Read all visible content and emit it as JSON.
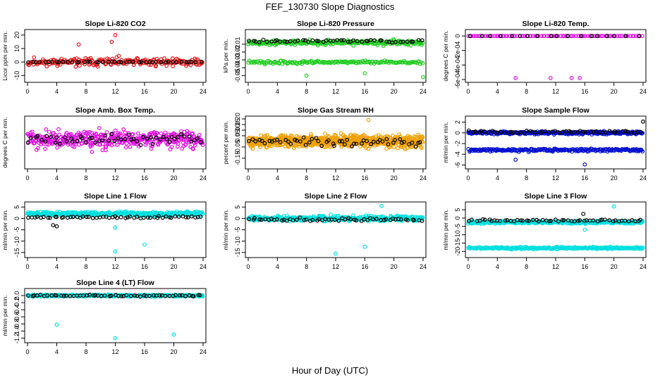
{
  "page": {
    "title": "FEF_130730  Slope Diagnostics",
    "xlabel": "Hour of Day (UTC)"
  },
  "chart_data": [
    {
      "id": "co2",
      "type": "scatter",
      "title": "Slope Li-820 CO2",
      "ylabel": "Licor ppm per min.",
      "xlim": [
        0,
        24
      ],
      "ylim": [
        -13,
        22
      ],
      "yticks": [
        -10,
        0,
        10,
        20
      ],
      "ytick_labels": [
        "-10",
        "0",
        "10",
        "20"
      ],
      "series": [
        {
          "name": "all",
          "color": "#e31a1c",
          "center": 0,
          "spread": 6,
          "n": 220,
          "seed": 11,
          "outliers": [
            [
              12,
              20
            ],
            [
              11.5,
              15
            ],
            [
              7,
              13
            ]
          ]
        },
        {
          "name": "flagged",
          "color": "#000000",
          "center": 0,
          "spread": 0.5,
          "n": 45,
          "seed": 12,
          "outliers": []
        }
      ]
    },
    {
      "id": "pressure",
      "type": "scatter",
      "title": "Slope Li-820 Pressure",
      "ylabel": "kPa per min.",
      "xlim": [
        0,
        24
      ],
      "ylim": [
        -0.055,
        0.005
      ],
      "yticks": [
        -0.05,
        -0.04,
        -0.03,
        -0.02,
        -0.01
      ],
      "ytick_labels": [
        "-0.05",
        "-0.04",
        "-0.03",
        "-0.02",
        "-0.01"
      ],
      "series": [
        {
          "name": "all-upper",
          "color": "#22cc22",
          "center": -0.008,
          "spread": 0.006,
          "n": 260,
          "seed": 21,
          "outliers": [
            [
              8,
              -0.05
            ],
            [
              24,
              -0.052
            ],
            [
              16,
              -0.047
            ]
          ]
        },
        {
          "name": "all-lower",
          "color": "#22cc22",
          "center": -0.033,
          "spread": 0.004,
          "n": 160,
          "seed": 22,
          "outliers": []
        },
        {
          "name": "flagged",
          "color": "#000000",
          "center": -0.006,
          "spread": 0.004,
          "n": 50,
          "seed": 23,
          "outliers": []
        }
      ]
    },
    {
      "id": "temp",
      "type": "scatter",
      "title": "Slope Li-820 Temp.",
      "ylabel": "degrees C per min.",
      "xlim": [
        0,
        24
      ],
      "ylim": [
        -0.0006,
        5e-05
      ],
      "yticks": [
        -0.0006,
        -0.0004,
        -0.0002,
        0
      ],
      "ytick_labels": [
        "-6e-04",
        "-4e-04",
        "-2e-04",
        "0"
      ],
      "series": [
        {
          "name": "all",
          "color": "#e010e0",
          "center": 0,
          "spread": 0,
          "n": 90,
          "seed": 31,
          "outliers": [
            [
              6.5,
              -0.00058
            ],
            [
              11.3,
              -0.00058
            ],
            [
              14.2,
              -0.00058
            ],
            [
              15.3,
              -0.00058
            ]
          ]
        },
        {
          "name": "flagged",
          "color": "#000000",
          "center": 0,
          "spread": 0,
          "n": 18,
          "seed": 32,
          "outliers": []
        }
      ]
    },
    {
      "id": "ambtemp",
      "type": "scatter",
      "title": "Slope Amb. Box Temp.",
      "ylabel": "degrees C per min.",
      "xlim": [
        0,
        24
      ],
      "ylim": [
        -0.18,
        0.14
      ],
      "yticks": [],
      "ytick_labels": [],
      "series": [
        {
          "name": "all",
          "color": "#e010e0",
          "center": 0,
          "spread": 0.11,
          "n": 420,
          "seed": 41,
          "outliers": []
        },
        {
          "name": "flagged",
          "color": "#000000",
          "center": 0,
          "spread": 0.06,
          "n": 55,
          "seed": 42,
          "outliers": []
        }
      ]
    },
    {
      "id": "rh",
      "type": "scatter",
      "title": "Slope Gas Stream RH",
      "ylabel": "percent per min.",
      "xlim": [
        0,
        24
      ],
      "ylim": [
        -0.22,
        0.2
      ],
      "yticks": [
        -0.15,
        -0.05,
        0.05,
        0.1,
        0.15,
        0.2
      ],
      "ytick_labels": [
        "-0.15",
        "-0.05",
        "0.05",
        "0.10",
        "0.15",
        "0.20"
      ],
      "series": [
        {
          "name": "all",
          "color": "#f0a000",
          "center": 0,
          "spread": 0.1,
          "n": 700,
          "seed": 51,
          "outliers": [
            [
              16.5,
              0.19
            ]
          ]
        },
        {
          "name": "flagged",
          "color": "#000000",
          "center": 0,
          "spread": 0.07,
          "n": 55,
          "seed": 52,
          "outliers": []
        }
      ]
    },
    {
      "id": "sampleflow",
      "type": "scatter",
      "title": "Slope Sample Flow",
      "ylabel": "ml/min per min.",
      "xlim": [
        0,
        24
      ],
      "ylim": [
        -6.2,
        2.6
      ],
      "yticks": [
        -6,
        -4,
        -2,
        0,
        2
      ],
      "ytick_labels": [
        "-6",
        "-4",
        "-2",
        "0",
        "2"
      ],
      "series": [
        {
          "name": "all-upper",
          "color": "#0010d0",
          "center": 0,
          "spread": 0.5,
          "n": 320,
          "seed": 61,
          "outliers": [
            [
              16,
              -5.9
            ],
            [
              6.5,
              -5
            ]
          ]
        },
        {
          "name": "all-lower",
          "color": "#0010d0",
          "center": -3.2,
          "spread": 0.5,
          "n": 220,
          "seed": 62,
          "outliers": []
        },
        {
          "name": "flagged",
          "color": "#000000",
          "center": 0.2,
          "spread": 0.4,
          "n": 55,
          "seed": 63,
          "outliers": [
            [
              24,
              2.1
            ]
          ]
        }
      ]
    },
    {
      "id": "line1",
      "type": "scatter",
      "title": "Slope Line 1 Flow",
      "ylabel": "ml/min per min.",
      "xlim": [
        0,
        24
      ],
      "ylim": [
        -16,
        6
      ],
      "yticks": [
        -15,
        -10,
        -5,
        0,
        5
      ],
      "ytick_labels": [
        "-15",
        "-10",
        "-5",
        "0",
        "5"
      ],
      "series": [
        {
          "name": "all",
          "color": "#00e0e0",
          "center": 2,
          "spread": 1.8,
          "n": 360,
          "seed": 71,
          "outliers": [
            [
              12,
              -14.5
            ],
            [
              16,
              -11.5
            ],
            [
              12,
              -4
            ]
          ]
        },
        {
          "name": "flagged",
          "color": "#000000",
          "center": 0.5,
          "spread": 1,
          "n": 55,
          "seed": 72,
          "outliers": [
            [
              4,
              -3.5
            ],
            [
              3.5,
              -3
            ]
          ]
        }
      ]
    },
    {
      "id": "line2",
      "type": "scatter",
      "title": "Slope Line 2 Flow",
      "ylabel": "ml/min per min.",
      "xlim": [
        0,
        24
      ],
      "ylim": [
        -16,
        6
      ],
      "yticks": [
        -15,
        -10,
        -5,
        0,
        5
      ],
      "ytick_labels": [
        "-15",
        "-10",
        "-5",
        "0",
        "5"
      ],
      "series": [
        {
          "name": "all",
          "color": "#00e0e0",
          "center": 0,
          "spread": 2.4,
          "n": 360,
          "seed": 81,
          "outliers": [
            [
              12,
              -15.5
            ],
            [
              16,
              -12.5
            ],
            [
              18.3,
              5.5
            ]
          ]
        },
        {
          "name": "flagged",
          "color": "#000000",
          "center": -0.5,
          "spread": 1.2,
          "n": 55,
          "seed": 82,
          "outliers": []
        }
      ]
    },
    {
      "id": "line3",
      "type": "scatter",
      "title": "Slope Line 3 Flow",
      "ylabel": "ml/min per min.",
      "xlim": [
        0,
        24
      ],
      "ylim": [
        -22,
        8
      ],
      "yticks": [
        -20,
        -15,
        -10,
        -5,
        0,
        5
      ],
      "ytick_labels": [
        "-20",
        "-15",
        "-10",
        "-5",
        "0",
        "5"
      ],
      "series": [
        {
          "name": "all-upper",
          "color": "#00e0e0",
          "center": -2.5,
          "spread": 1.5,
          "n": 330,
          "seed": 91,
          "outliers": [
            [
              20,
              7
            ]
          ]
        },
        {
          "name": "all-lower",
          "color": "#00e0e0",
          "center": -18,
          "spread": 1.3,
          "n": 260,
          "seed": 92,
          "outliers": [
            [
              16,
              -7
            ]
          ]
        },
        {
          "name": "flagged",
          "color": "#000000",
          "center": -1.5,
          "spread": 1.2,
          "n": 55,
          "seed": 93,
          "outliers": [
            [
              15.8,
              2.5
            ]
          ]
        }
      ]
    },
    {
      "id": "line4",
      "type": "scatter",
      "title": "Slope Line 4 (LT) Flow",
      "ylabel": "ml/min per min.",
      "xlim": [
        0,
        24
      ],
      "ylim": [
        -1.25,
        0.12
      ],
      "yticks": [
        -1.2,
        -1,
        -0.8,
        -0.6,
        -0.4,
        -0.2,
        0
      ],
      "ytick_labels": [
        "-1.2",
        "-1.0",
        "-0.8",
        "-0.6",
        "-0.4",
        "-0.2",
        "0.0"
      ],
      "series": [
        {
          "name": "all",
          "color": "#00e0e0",
          "center": 0,
          "spread": 0.05,
          "n": 360,
          "seed": 101,
          "outliers": [
            [
              4,
              -0.82
            ],
            [
              12,
              -1.2
            ],
            [
              20,
              -1.1
            ]
          ]
        },
        {
          "name": "flagged",
          "color": "#000000",
          "center": 0,
          "spread": 0.04,
          "n": 55,
          "seed": 102,
          "outliers": []
        }
      ]
    }
  ],
  "xaxis": {
    "ticks": [
      0,
      4,
      8,
      12,
      16,
      20,
      24
    ],
    "tick_labels": [
      "0",
      "4",
      "8",
      "12",
      "16",
      "20",
      "24"
    ]
  }
}
